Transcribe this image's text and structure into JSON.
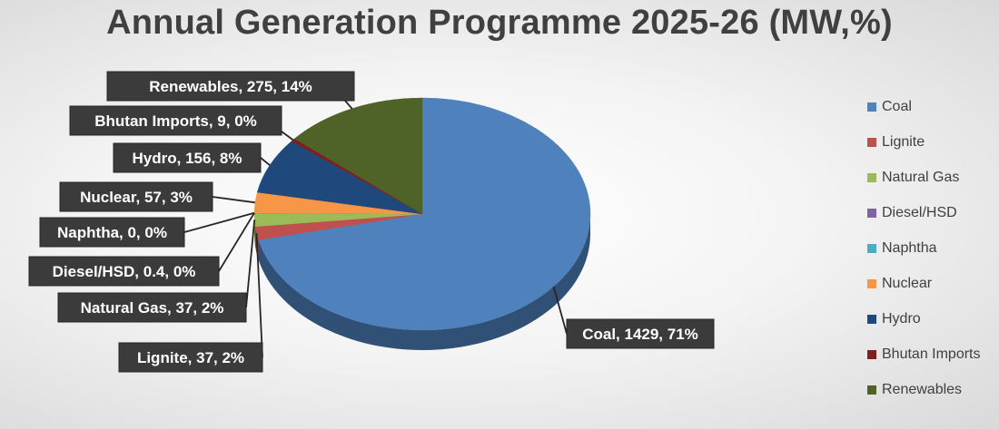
{
  "chart_data": {
    "type": "pie",
    "title": "Annual Generation Programme 2025-26 (MW,%)",
    "legend_position": "right",
    "slices": [
      {
        "name": "Coal",
        "value": 1429,
        "percent": "71%",
        "color": "#4f81bd",
        "label": "Coal, 1429, 71%"
      },
      {
        "name": "Lignite",
        "value": 37,
        "percent": "2%",
        "color": "#c0504d",
        "label": "Lignite, 37, 2%"
      },
      {
        "name": "Natural Gas",
        "value": 37,
        "percent": "2%",
        "color": "#9bbb59",
        "label": "Natural Gas, 37, 2%"
      },
      {
        "name": "Diesel/HSD",
        "value": 0.4,
        "percent": "0%",
        "color": "#8064a2",
        "label": "Diesel/HSD, 0.4, 0%"
      },
      {
        "name": "Naphtha",
        "value": 0,
        "percent": "0%",
        "color": "#4bacc6",
        "label": "Naphtha, 0, 0%"
      },
      {
        "name": "Nuclear",
        "value": 57,
        "percent": "3%",
        "color": "#f79646",
        "label": "Nuclear, 57, 3%"
      },
      {
        "name": "Hydro",
        "value": 156,
        "percent": "8%",
        "color": "#1f497d",
        "label": "Hydro, 156, 8%"
      },
      {
        "name": "Bhutan Imports",
        "value": 9,
        "percent": "0%",
        "color": "#7f2020",
        "label": "Bhutan Imports, 9, 0%"
      },
      {
        "name": "Renewables",
        "value": 275,
        "percent": "14%",
        "color": "#4f6228",
        "label": "Renewables, 275, 14%"
      }
    ]
  }
}
